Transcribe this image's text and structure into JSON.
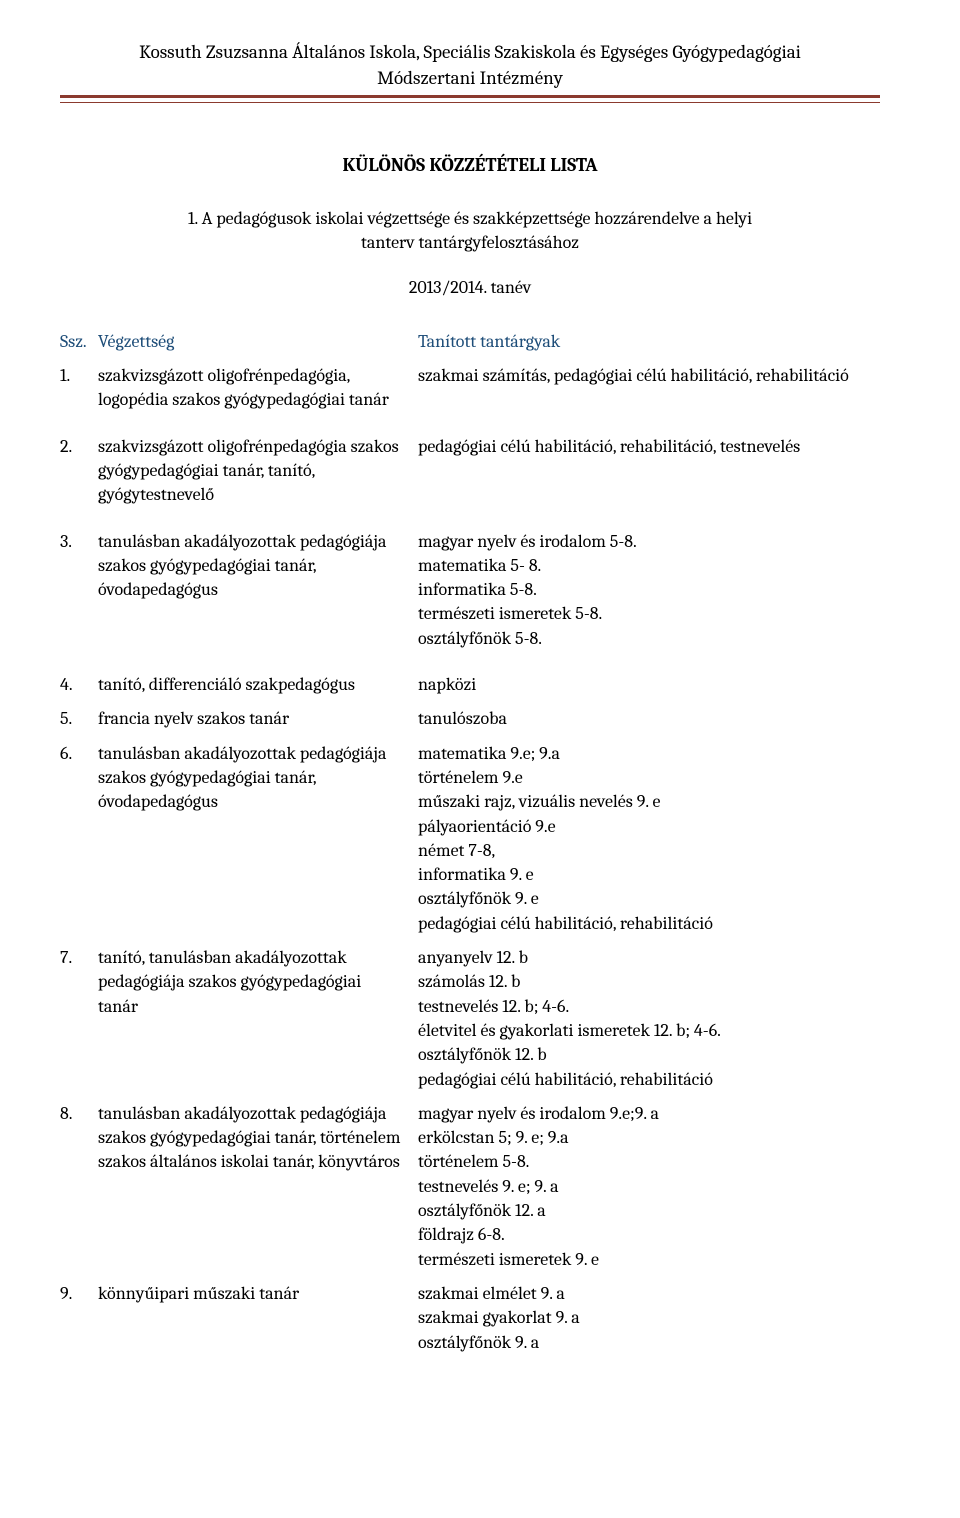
{
  "header": {
    "line1": "Kossuth Zsuzsanna Általános Iskola, Speciális Szakiskola és Egységes Gyógypedagógiai",
    "line2": "Módszertani Intézmény"
  },
  "doc_title": "KÜLÖNÖS KÖZZÉTÉTELI LISTA",
  "section_title": "1. A pedagógusok iskolai végzettsége és szakképzettsége hozzárendelve a helyi tanterv tantárgyfelosztásához",
  "year": "2013/2014. tanév",
  "table_header": {
    "ssz": "Ssz.",
    "vegzettseg": "Végzettség",
    "tantargyak": "Tanított tantárgyak"
  },
  "rows": [
    {
      "num": "1.",
      "left": "szakvizsgázott oligofrénpedagógia, logopédia szakos gyógypedagógiai tanár",
      "right": [
        "szakmai számítás, pedagógiai célú habilitáció, rehabilitáció"
      ]
    },
    {
      "num": "2.",
      "left": "szakvizsgázott oligofrénpedagógia szakos gyógypedagógiai tanár, tanító, gyógytestnevelő",
      "right": [
        "pedagógiai célú habilitáció, rehabilitáció, testnevelés"
      ]
    },
    {
      "num": "3.",
      "left": "tanulásban akadályozottak pedagógiája szakos gyógypedagógiai tanár, óvodapedagógus",
      "right": [
        "magyar nyelv és irodalom 5-8.",
        "matematika 5- 8.",
        "informatika 5-8.",
        "természeti ismeretek 5-8.",
        "osztályfőnök 5-8."
      ]
    },
    {
      "num": "4.",
      "left": "tanító, differenciáló szakpedagógus",
      "right": [
        "napközi"
      ],
      "tight": true
    },
    {
      "num": "5.",
      "left": "francia nyelv szakos tanár",
      "right": [
        "tanulószoba"
      ],
      "tight": true
    },
    {
      "num": "6.",
      "left": "tanulásban akadályozottak pedagógiája szakos gyógypedagógiai tanár, óvodapedagógus",
      "right": [
        "matematika 9.e; 9.a",
        "történelem 9.e",
        "műszaki rajz, vizuális nevelés 9. e",
        "pályaorientáció 9.e",
        "német 7-8,",
        "informatika 9. e",
        "osztályfőnök 9. e",
        "pedagógiai célú habilitáció, rehabilitáció"
      ],
      "tight": true
    },
    {
      "num": "7.",
      "left": "tanító, tanulásban akadályozottak pedagógiája szakos gyógypedagógiai tanár",
      "right": [
        "anyanyelv 12. b",
        "számolás 12. b",
        "testnevelés 12. b; 4-6.",
        "életvitel és gyakorlati ismeretek 12. b; 4-6.",
        "osztályfőnök 12. b",
        "pedagógiai célú habilitáció, rehabilitáció"
      ],
      "tight": true
    },
    {
      "num": "8.",
      "left": "tanulásban akadályozottak pedagógiája szakos gyógypedagógiai tanár, történelem szakos általános iskolai tanár, könyvtáros",
      "right": [
        "magyar nyelv és irodalom 9.e;9. a",
        "erkölcstan 5; 9. e; 9.a",
        "történelem 5-8.",
        "testnevelés 9. e; 9. a",
        "osztályfőnök 12. a",
        "földrajz 6-8.",
        "természeti ismeretek 9. e"
      ],
      "tight": true
    },
    {
      "num": "9.",
      "left": "könnyűipari műszaki tanár",
      "right": [
        "szakmai elmélet 9. a",
        "szakmai gyakorlat 9. a",
        "osztályfőnök 9. a"
      ],
      "tight": true
    }
  ]
}
